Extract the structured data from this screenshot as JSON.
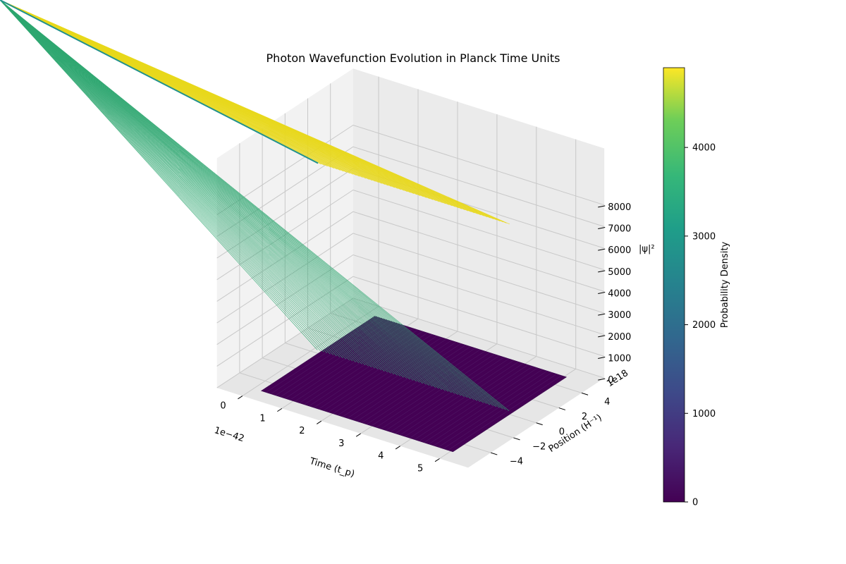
{
  "chart_data": {
    "type": "surface3d",
    "title": "Photon Wavefunction Evolution in Planck Time Units",
    "x_axis": {
      "label": "Time (t_p)",
      "offset_label": "1e−42",
      "ticks": [
        0,
        1,
        2,
        3,
        4,
        5
      ],
      "tick_labels": [
        "0",
        "1",
        "2",
        "3",
        "4",
        "5"
      ],
      "range": [
        0,
        5.4
      ]
    },
    "y_axis": {
      "label": "Position (H⁻¹)",
      "offset_label": "1e18",
      "ticks": [
        -4,
        -2,
        0,
        2,
        4
      ],
      "tick_labels": [
        "−4",
        "−2",
        "0",
        "2",
        "4"
      ],
      "range": [
        -5,
        5
      ]
    },
    "z_axis": {
      "label": "|ψ|²",
      "ticks": [
        0,
        1000,
        2000,
        3000,
        4000,
        5000,
        6000,
        7000,
        8000
      ],
      "tick_labels": [
        "0",
        "1000",
        "2000",
        "3000",
        "4000",
        "5000",
        "6000",
        "7000",
        "8000"
      ],
      "range": [
        0,
        9000
      ]
    },
    "surface": {
      "description_values": {
        "peak_position": 0,
        "peak_value": 8800,
        "shoulder_value": 3500,
        "baseline_value": 0
      },
      "profile_position": [
        -5.0,
        -0.35,
        -0.05,
        0.05,
        0.35,
        5.0
      ],
      "profile_value": [
        0,
        0,
        3500,
        3500,
        0,
        0
      ],
      "upper_band_positions": [
        -0.05,
        0.05
      ],
      "upper_band_value": 8800
    },
    "colorbar": {
      "label": "Probability Density",
      "colormap": "viridis",
      "range": [
        0,
        4900
      ],
      "ticks": [
        0,
        1000,
        2000,
        3000,
        4000
      ],
      "tick_labels": [
        "0",
        "1000",
        "2000",
        "3000",
        "4000"
      ]
    },
    "grid": true,
    "colors": {
      "viridis_low": "#440154",
      "viridis_mid": "#21918c",
      "viridis_green": "#3cbb75",
      "viridis_high": "#fde725",
      "pane": "#f2f2f2",
      "grid": "#c8c8c8"
    }
  }
}
